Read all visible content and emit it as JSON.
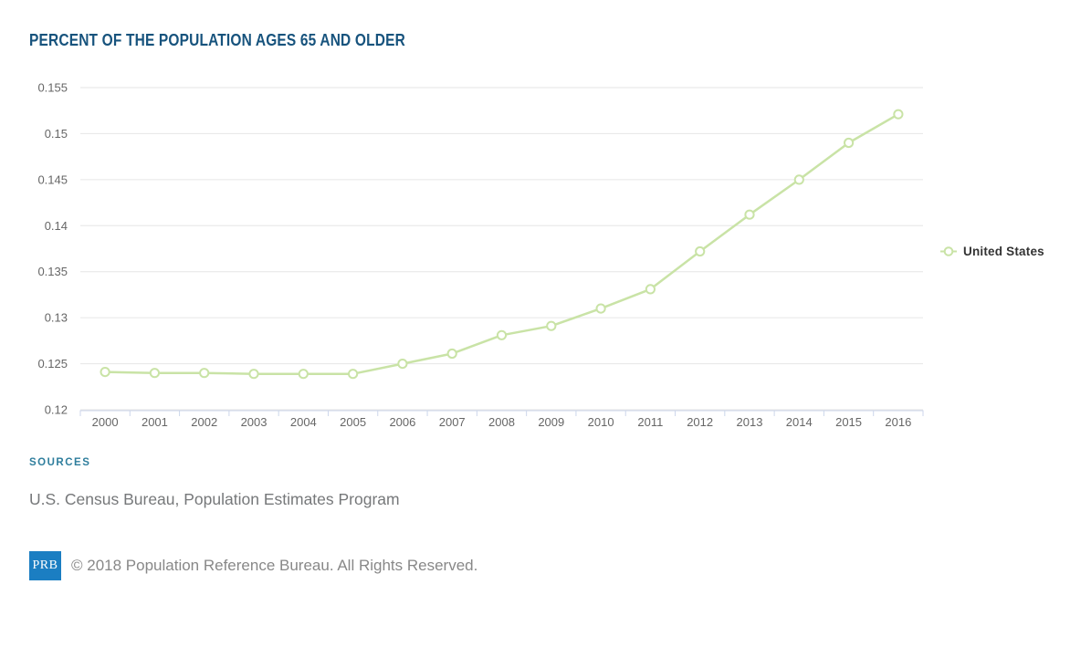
{
  "header": {
    "title": "PERCENT OF THE POPULATION AGES 65 AND OLDER"
  },
  "chart_data": {
    "type": "line",
    "x": [
      2000,
      2001,
      2002,
      2003,
      2004,
      2005,
      2006,
      2007,
      2008,
      2009,
      2010,
      2011,
      2012,
      2013,
      2014,
      2015,
      2016
    ],
    "series": [
      {
        "name": "United States",
        "color": "#c9e3a6",
        "values": [
          0.1241,
          0.124,
          0.124,
          0.1239,
          0.1239,
          0.1239,
          0.125,
          0.1261,
          0.1281,
          0.1291,
          0.131,
          0.1331,
          0.1372,
          0.1412,
          0.145,
          0.149,
          0.1521
        ]
      }
    ],
    "title": "PERCENT OF THE POPULATION AGES 65 AND OLDER",
    "xlabel": "",
    "ylabel": "",
    "ylim": [
      0.12,
      0.155
    ],
    "ytick_interval": 0.005,
    "ytick_labels": [
      "0.12",
      "0.125",
      "0.13",
      "0.135",
      "0.14",
      "0.145",
      "0.15",
      "0.155"
    ],
    "grid": true,
    "legend_position": "right",
    "marker": "hollow-circle"
  },
  "sources": {
    "label": "SOURCES",
    "text": "U.S. Census Bureau, Population Estimates Program"
  },
  "footer": {
    "logo_text": "PRB",
    "copyright": "© 2018 Population Reference Bureau. All Rights Reserved."
  },
  "colors": {
    "title": "#17537d",
    "sources_label": "#2f7e9d",
    "text_muted": "#76787a",
    "footer_text": "#888888",
    "prb_blue": "#1b7ec2",
    "series_green": "#c9e3a6",
    "grid": "#e6e6e6",
    "axis": "#ccd6eb",
    "axis_label": "#666666",
    "legend_text": "#333333"
  }
}
